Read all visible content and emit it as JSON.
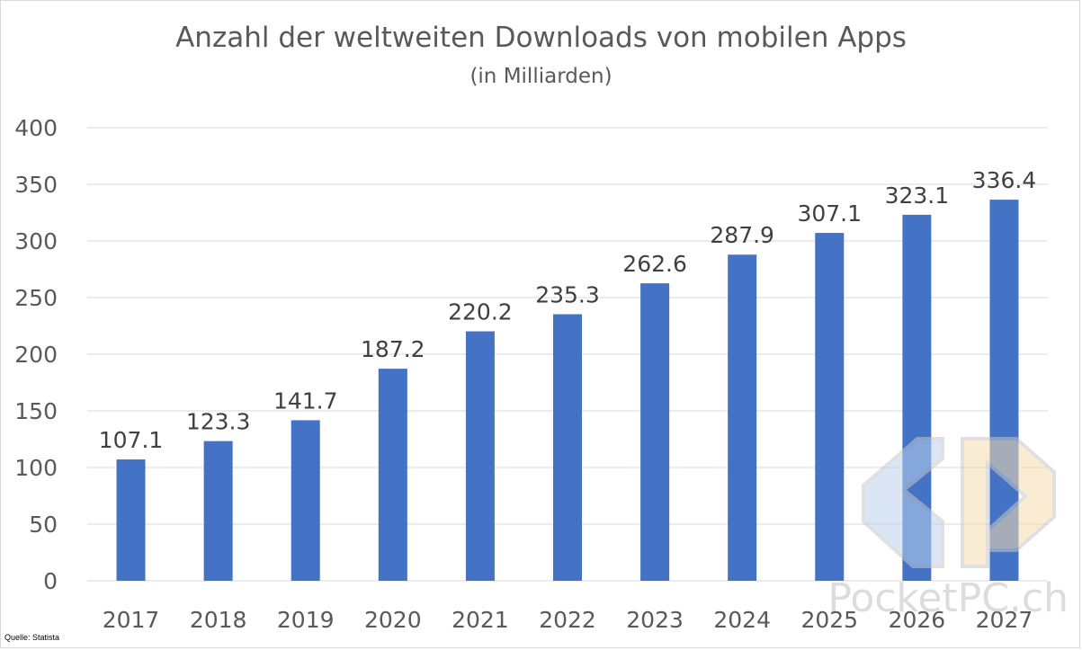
{
  "chart_data": {
    "type": "bar",
    "title": "Anzahl der weltweiten Downloads von mobilen Apps",
    "subtitle": "(in Milliarden)",
    "categories": [
      "2017",
      "2018",
      "2019",
      "2020",
      "2021",
      "2022",
      "2023",
      "2024",
      "2025",
      "2026",
      "2027"
    ],
    "values": [
      107.1,
      123.3,
      141.7,
      187.2,
      220.2,
      235.3,
      262.6,
      287.9,
      307.1,
      323.1,
      336.4
    ],
    "data_labels": [
      "107.1",
      "123.3",
      "141.7",
      "187.2",
      "220.2",
      "235.3",
      "262.6",
      "287.9",
      "307.1",
      "323.1",
      "336.4"
    ],
    "ylim": [
      0,
      400
    ],
    "yticks": [
      0,
      50,
      100,
      150,
      200,
      250,
      300,
      350,
      400
    ],
    "grid": true,
    "legend": "none",
    "bar_color": "#4472c4"
  },
  "source_note": "Quelle: Statista",
  "watermark": {
    "text": "PocketPC.ch",
    "logo": "pocketpc-logo-icon"
  }
}
